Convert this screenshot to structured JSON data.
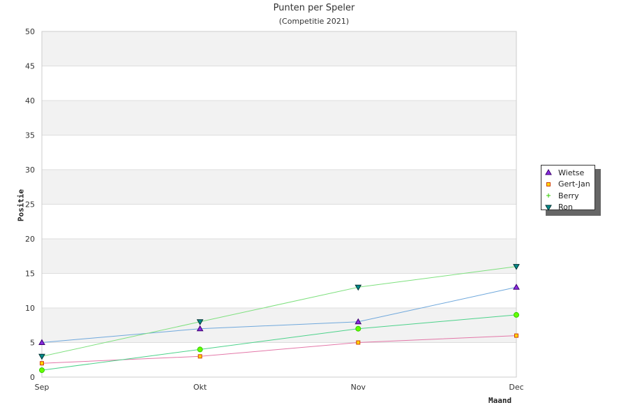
{
  "chart_data": {
    "type": "line",
    "title": "Punten per Speler",
    "subtitle": "(Competitie 2021)",
    "xlabel": "Maand",
    "ylabel": "Positie",
    "categories": [
      "Sep",
      "Okt",
      "Nov",
      "Dec"
    ],
    "ylim": [
      0,
      50
    ],
    "yticks": [
      "0",
      "5",
      "10",
      "15",
      "20",
      "25",
      "30",
      "35",
      "40",
      "45",
      "50"
    ],
    "grid": true,
    "legend_position": "right",
    "series": [
      {
        "name": "Wietse",
        "values": [
          5,
          7,
          8,
          13
        ],
        "line_color": "#6fa8dc",
        "marker": "triangle-up",
        "marker_fill": "#8a2be2",
        "marker_stroke": "#3b0070"
      },
      {
        "name": "Gert-Jan",
        "values": [
          2,
          3,
          5,
          6
        ],
        "line_color": "#e377a8",
        "marker": "square",
        "marker_fill": "#ffd700",
        "marker_stroke": "#d04000"
      },
      {
        "name": "Berry",
        "values": [
          1,
          4,
          7,
          9
        ],
        "line_color": "#4cd28a",
        "marker": "circle",
        "marker_fill": "#66ff00",
        "marker_stroke": "#33cc00"
      },
      {
        "name": "Ron",
        "values": [
          3,
          8,
          13,
          16
        ],
        "line_color": "#7ee07e",
        "marker": "triangle-down",
        "marker_fill": "#008b8b",
        "marker_stroke": "#003333"
      }
    ],
    "colors": {
      "band": "#f2f2f2",
      "grid": "#dddddd",
      "axis": "#cccccc"
    }
  }
}
